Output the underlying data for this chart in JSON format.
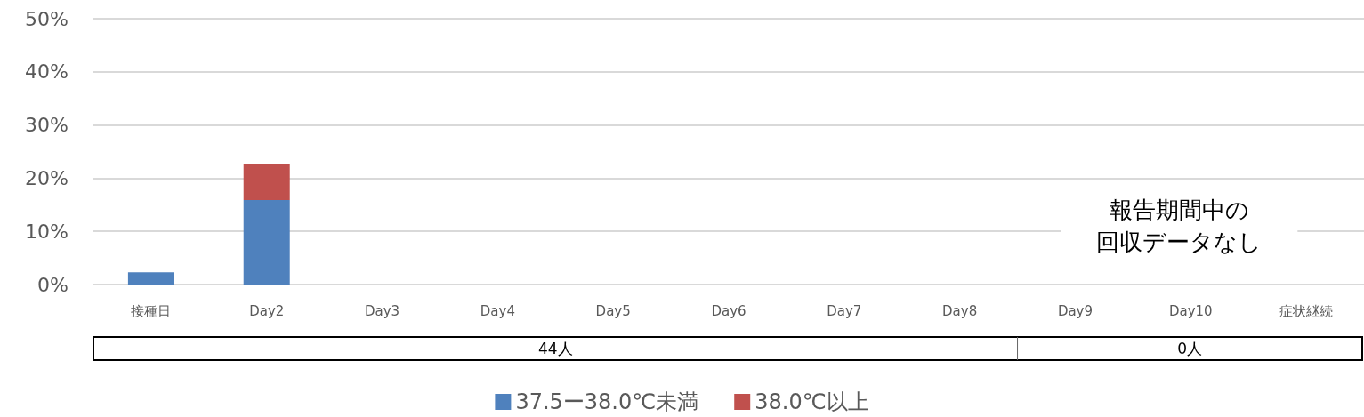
{
  "chart_data": {
    "type": "bar",
    "stacked": true,
    "categories": [
      "接種日",
      "Day2",
      "Day3",
      "Day4",
      "Day5",
      "Day6",
      "Day7",
      "Day8",
      "Day9",
      "Day10",
      "症状継続"
    ],
    "series": [
      {
        "name": "37.5ー38.0℃未満",
        "color": "#4f81bd",
        "values": [
          2.3,
          15.9,
          0,
          0,
          0,
          0,
          0,
          0,
          null,
          null,
          null
        ]
      },
      {
        "name": "38.0℃以上",
        "color": "#c0504d",
        "values": [
          0,
          6.8,
          0,
          0,
          0,
          0,
          0,
          0,
          null,
          null,
          null
        ]
      }
    ],
    "ylim": [
      0,
      50
    ],
    "yticks": [
      {
        "value": 0,
        "label": "0%"
      },
      {
        "value": 10,
        "label": "10%"
      },
      {
        "value": 20,
        "label": "20%"
      },
      {
        "value": 30,
        "label": "30%"
      },
      {
        "value": 40,
        "label": "40%"
      },
      {
        "value": 50,
        "label": "50%"
      }
    ],
    "grid": "y",
    "legend": "bottom",
    "annotations": [
      "報告期間中の",
      "回収データなし",
      "44人",
      "0人"
    ]
  }
}
